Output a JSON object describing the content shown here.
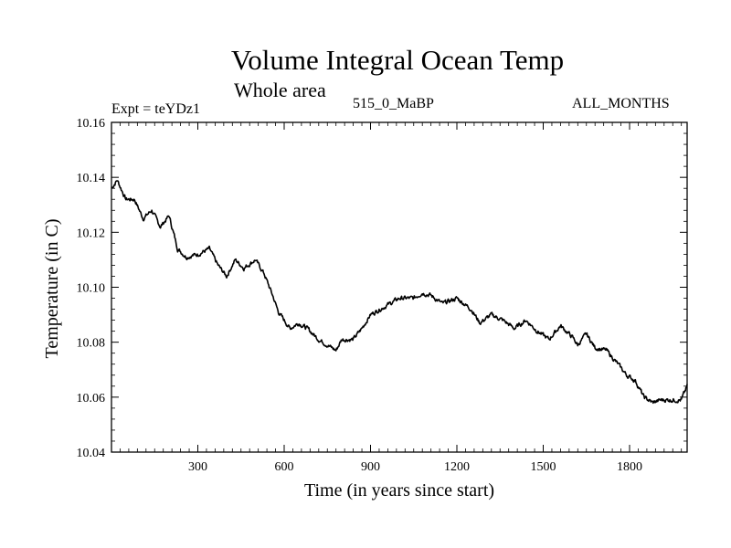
{
  "chart_data": {
    "type": "line",
    "title": "Volume Integral Ocean Temp",
    "subtitle": "Whole area",
    "expt_label": "Expt = teYDz1",
    "center_label": "515_0_MaBP",
    "right_label": "ALL_MONTHS",
    "xlabel": "Time (in years since start)",
    "ylabel": "Temperature (in C)",
    "xlim": [
      0,
      2000
    ],
    "ylim": [
      10.04,
      10.16
    ],
    "xticks": [
      300,
      600,
      900,
      1200,
      1500,
      1800
    ],
    "xtick_labels": [
      "300",
      "600",
      "900",
      "1200",
      "1500",
      "1800"
    ],
    "yticks": [
      10.04,
      10.06,
      10.08,
      10.1,
      10.12,
      10.14,
      10.16
    ],
    "ytick_labels": [
      "10.04",
      "10.06",
      "10.08",
      "10.10",
      "10.12",
      "10.14",
      "10.16"
    ],
    "grid": false,
    "series": [
      {
        "name": "teYDz1",
        "x": [
          0,
          20,
          50,
          80,
          110,
          140,
          170,
          200,
          230,
          260,
          300,
          340,
          370,
          400,
          430,
          460,
          500,
          530,
          560,
          580,
          600,
          620,
          650,
          680,
          700,
          720,
          750,
          780,
          800,
          840,
          870,
          900,
          950,
          1000,
          1050,
          1080,
          1110,
          1150,
          1200,
          1250,
          1280,
          1320,
          1360,
          1400,
          1440,
          1480,
          1520,
          1560,
          1600,
          1620,
          1650,
          1680,
          1720,
          1760,
          1790,
          1820,
          1850,
          1880,
          1910,
          1950,
          1980,
          2000
        ],
        "values": [
          10.136,
          10.139,
          10.132,
          10.132,
          10.125,
          10.128,
          10.122,
          10.126,
          10.114,
          10.111,
          10.112,
          10.114,
          10.108,
          10.104,
          10.11,
          10.107,
          10.11,
          10.105,
          10.097,
          10.091,
          10.088,
          10.085,
          10.087,
          10.085,
          10.083,
          10.081,
          10.079,
          10.077,
          10.081,
          10.081,
          10.085,
          10.09,
          10.093,
          10.096,
          10.096,
          10.098,
          10.097,
          10.094,
          10.096,
          10.092,
          10.087,
          10.09,
          10.088,
          10.085,
          10.088,
          10.084,
          10.081,
          10.086,
          10.082,
          10.079,
          10.083,
          10.078,
          10.077,
          10.072,
          10.068,
          10.066,
          10.06,
          10.058,
          10.059,
          10.059,
          10.059,
          10.064
        ]
      }
    ]
  }
}
